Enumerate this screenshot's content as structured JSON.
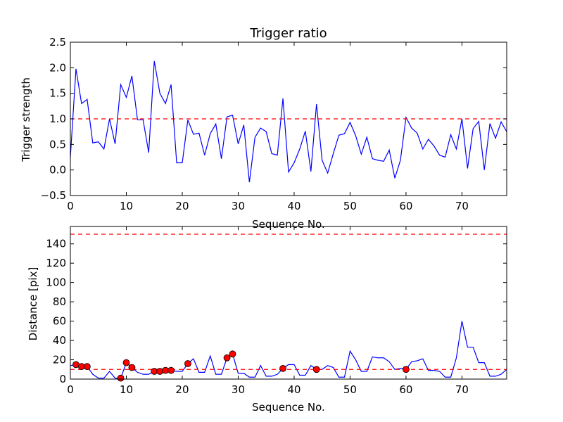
{
  "chart_data": [
    {
      "type": "line",
      "title": "Trigger ratio",
      "xlabel": "Sequence No.",
      "ylabel": "Trigger strength",
      "xlim": [
        0,
        78
      ],
      "ylim": [
        -0.5,
        2.5
      ],
      "x_ticks": [
        0,
        10,
        20,
        30,
        40,
        50,
        60,
        70
      ],
      "y_ticks": [
        -0.5,
        0.0,
        0.5,
        1.0,
        1.5,
        2.0,
        2.5
      ],
      "y_tick_labels": [
        "−0.5",
        "0.0",
        "0.5",
        "1.0",
        "1.5",
        "2.0",
        "2.5"
      ],
      "grid": false,
      "colors": {
        "line": "#0000ff",
        "threshold": "#ff0000"
      },
      "series": [
        {
          "x": [
            0,
            1,
            2,
            3,
            4,
            5,
            6,
            7,
            8,
            9,
            10,
            11,
            12,
            13,
            14,
            15,
            16,
            17,
            18,
            19,
            20,
            21,
            22,
            23,
            24,
            25,
            26,
            27,
            28,
            29,
            30,
            31,
            32,
            33,
            34,
            35,
            36,
            37,
            38,
            39,
            40,
            41,
            42,
            43,
            44,
            45,
            46,
            47,
            48,
            49,
            50,
            51,
            52,
            53,
            54,
            55,
            56,
            57,
            58,
            59,
            60,
            61,
            62,
            63,
            64,
            65,
            66,
            67,
            68,
            69,
            70,
            71,
            72,
            73,
            74,
            75,
            76,
            77,
            78
          ],
          "values": [
            0.25,
            1.98,
            1.3,
            1.38,
            0.53,
            0.55,
            0.41,
            1.0,
            0.51,
            1.67,
            1.42,
            1.84,
            0.98,
            0.98,
            0.34,
            2.13,
            1.5,
            1.3,
            1.67,
            0.14,
            0.14,
            0.98,
            0.7,
            0.72,
            0.29,
            0.71,
            0.9,
            0.22,
            1.04,
            1.07,
            0.51,
            0.88,
            -0.24,
            0.64,
            0.82,
            0.75,
            0.32,
            0.29,
            1.4,
            -0.04,
            0.14,
            0.41,
            0.76,
            -0.03,
            1.29,
            0.19,
            -0.06,
            0.32,
            0.68,
            0.71,
            0.93,
            0.67,
            0.31,
            0.64,
            0.22,
            0.19,
            0.17,
            0.39,
            -0.16,
            0.19,
            1.03,
            0.82,
            0.72,
            0.41,
            0.6,
            0.47,
            0.29,
            0.25,
            0.69,
            0.41,
            1.0,
            0.03,
            0.81,
            0.95,
            0.0,
            0.91,
            0.62,
            0.94,
            0.75
          ]
        }
      ],
      "threshold": 1.0
    },
    {
      "type": "line",
      "title": "",
      "xlabel": "Sequence No.",
      "ylabel": "Distance [pix]",
      "xlim": [
        0,
        78
      ],
      "ylim": [
        0,
        158
      ],
      "x_ticks": [
        0,
        10,
        20,
        30,
        40,
        50,
        60,
        70
      ],
      "y_ticks": [
        0,
        20,
        40,
        60,
        80,
        100,
        120,
        140
      ],
      "y_tick_labels": [
        "0",
        "20",
        "40",
        "60",
        "80",
        "100",
        "120",
        "140"
      ],
      "grid": false,
      "colors": {
        "line": "#0000ff",
        "threshold": "#ff0000",
        "markers": "#ff0000"
      },
      "series": [
        {
          "x": [
            0,
            1,
            2,
            3,
            4,
            5,
            6,
            7,
            8,
            9,
            10,
            11,
            12,
            13,
            14,
            15,
            16,
            17,
            18,
            19,
            20,
            21,
            22,
            23,
            24,
            25,
            26,
            27,
            28,
            29,
            30,
            31,
            32,
            33,
            34,
            35,
            36,
            37,
            38,
            39,
            40,
            41,
            42,
            43,
            44,
            45,
            46,
            47,
            48,
            49,
            50,
            51,
            52,
            53,
            54,
            55,
            56,
            57,
            58,
            59,
            60,
            61,
            62,
            63,
            64,
            65,
            66,
            67,
            68,
            69,
            70,
            71,
            72,
            73,
            74,
            75,
            76,
            77,
            78
          ],
          "values": [
            14,
            15,
            13,
            13,
            5,
            1,
            1,
            8,
            1,
            1,
            17,
            12,
            7,
            5,
            5,
            8,
            8,
            9,
            9,
            8,
            8,
            16,
            21,
            7,
            7,
            24,
            5,
            5,
            22,
            26,
            6,
            6,
            2,
            2,
            14,
            3,
            3,
            5,
            11,
            15,
            15,
            4,
            4,
            14,
            10,
            10,
            14,
            12,
            2,
            2,
            29,
            20,
            8,
            8,
            23,
            22,
            22,
            18,
            10,
            11,
            10,
            18,
            19,
            21,
            9,
            9,
            8,
            2,
            2,
            22,
            60,
            33,
            33,
            17,
            17,
            3,
            3,
            5,
            10
          ]
        },
        {
          "name": "markers",
          "x": [
            1,
            2,
            3,
            9,
            10,
            11,
            15,
            16,
            17,
            18,
            21,
            28,
            29,
            38,
            44,
            60
          ],
          "values": [
            15,
            13,
            13,
            1,
            17,
            12,
            8,
            8,
            9,
            9,
            16,
            22,
            26,
            11,
            10,
            10
          ]
        }
      ],
      "thresholds": [
        10,
        150
      ]
    }
  ]
}
